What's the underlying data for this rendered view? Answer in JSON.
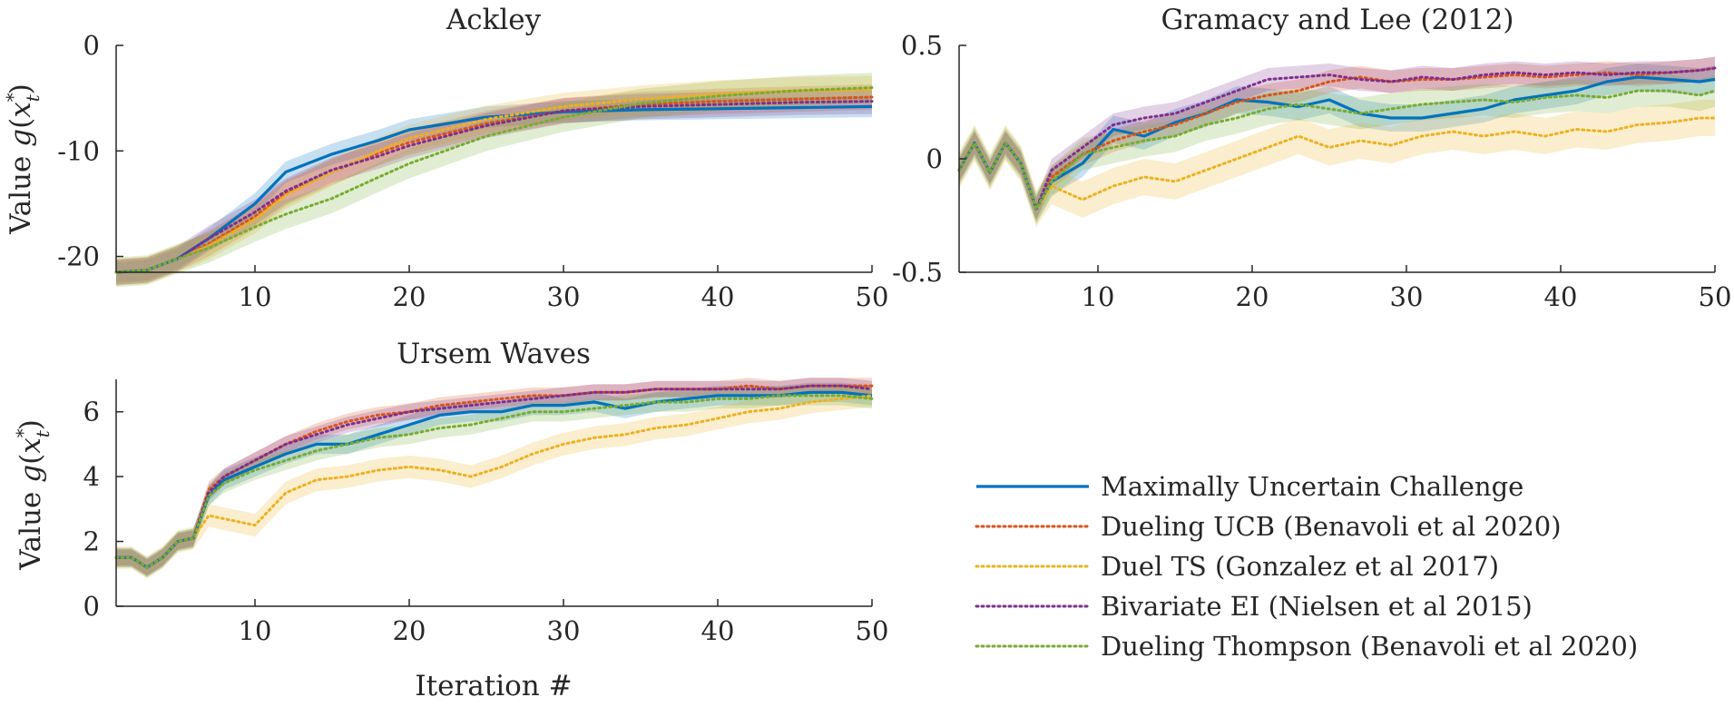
{
  "legend": {
    "entries": [
      {
        "name": "Maximally Uncertain Challenge",
        "color": "#0072BD",
        "style": "solid"
      },
      {
        "name": "Dueling UCB (Benavoli et al 2020)",
        "color": "#D95319",
        "style": "dotted"
      },
      {
        "name": "Duel TS (Gonzalez et al 2017)",
        "color": "#EDB120",
        "style": "dotted"
      },
      {
        "name": "Bivariate EI (Nielsen et al 2015)",
        "color": "#7E2F8E",
        "style": "dotted"
      },
      {
        "name": "Dueling Thompson (Benavoli et al 2020)",
        "color": "#77AC30",
        "style": "dotted"
      }
    ]
  },
  "chart_data": [
    {
      "id": "ackley",
      "type": "line",
      "title": "Ackley",
      "xlabel": "",
      "ylabel": "Value g(x*_t)",
      "xlim": [
        1,
        50
      ],
      "ylim": [
        -21.5,
        0
      ],
      "xticks": [
        10,
        20,
        30,
        40,
        50
      ],
      "yticks": [
        -20,
        -10,
        0
      ],
      "x": [
        1,
        3,
        5,
        7,
        10,
        12,
        15,
        18,
        20,
        25,
        30,
        35,
        40,
        45,
        50
      ],
      "series": [
        {
          "name": "Maximally Uncertain Challenge",
          "values": [
            -21.5,
            -21.3,
            -20.2,
            -18.3,
            -15.0,
            -12.0,
            -10.3,
            -9.0,
            -8.0,
            -6.8,
            -6.3,
            -6.1,
            -6.0,
            -5.9,
            -5.8
          ],
          "band": 1.0
        },
        {
          "name": "Dueling UCB (Benavoli et al 2020)",
          "values": [
            -21.5,
            -21.3,
            -20.2,
            -18.8,
            -16.2,
            -14.0,
            -12.0,
            -10.2,
            -9.2,
            -7.4,
            -6.2,
            -5.6,
            -5.3,
            -5.1,
            -4.9
          ],
          "band": 1.2
        },
        {
          "name": "Duel TS (Gonzalez et al 2017)",
          "values": [
            -21.5,
            -21.3,
            -20.2,
            -19.0,
            -16.5,
            -14.2,
            -12.0,
            -10.0,
            -8.8,
            -7.0,
            -5.8,
            -5.1,
            -4.6,
            -4.3,
            -4.2
          ],
          "band": 1.3
        },
        {
          "name": "Bivariate EI (Nielsen et al 2015)",
          "values": [
            -21.5,
            -21.3,
            -20.2,
            -18.3,
            -15.8,
            -13.8,
            -11.8,
            -10.5,
            -9.5,
            -7.6,
            -6.2,
            -5.8,
            -5.6,
            -5.4,
            -5.3
          ],
          "band": 1.2
        },
        {
          "name": "Dueling Thompson (Benavoli et al 2020)",
          "values": [
            -21.5,
            -21.3,
            -20.2,
            -19.2,
            -17.2,
            -16.0,
            -14.5,
            -12.5,
            -11.2,
            -8.6,
            -6.8,
            -5.5,
            -4.8,
            -4.3,
            -4.0
          ],
          "band": 1.4
        }
      ]
    },
    {
      "id": "gramacy",
      "type": "line",
      "title": "Gramacy and Lee (2012)",
      "xlabel": "",
      "ylabel": "",
      "xlim": [
        1,
        50
      ],
      "ylim": [
        -0.5,
        0.5
      ],
      "xticks": [
        10,
        20,
        30,
        40,
        50
      ],
      "yticks": [
        -0.5,
        0,
        0.5
      ],
      "x": [
        1,
        2,
        3,
        4,
        5,
        6,
        7,
        9,
        11,
        13,
        15,
        17,
        19,
        21,
        23,
        25,
        27,
        29,
        31,
        33,
        35,
        37,
        39,
        41,
        43,
        45,
        47,
        49,
        50
      ],
      "series": [
        {
          "name": "Maximally Uncertain Challenge",
          "values": [
            -0.05,
            0.07,
            -0.06,
            0.07,
            -0.02,
            -0.22,
            -0.1,
            -0.02,
            0.13,
            0.1,
            0.16,
            0.2,
            0.26,
            0.25,
            0.23,
            0.26,
            0.2,
            0.18,
            0.18,
            0.2,
            0.22,
            0.26,
            0.28,
            0.3,
            0.34,
            0.36,
            0.35,
            0.34,
            0.35
          ],
          "band": 0.06
        },
        {
          "name": "Dueling UCB (Benavoli et al 2020)",
          "values": [
            -0.05,
            0.07,
            -0.06,
            0.07,
            -0.02,
            -0.22,
            -0.08,
            0.02,
            0.08,
            0.12,
            0.15,
            0.2,
            0.25,
            0.28,
            0.3,
            0.34,
            0.36,
            0.34,
            0.35,
            0.35,
            0.36,
            0.37,
            0.36,
            0.37,
            0.38,
            0.37,
            0.38,
            0.39,
            0.4
          ],
          "band": 0.05
        },
        {
          "name": "Duel TS (Gonzalez et al 2017)",
          "values": [
            -0.05,
            0.07,
            -0.06,
            0.07,
            -0.02,
            -0.22,
            -0.12,
            -0.18,
            -0.12,
            -0.08,
            -0.1,
            -0.05,
            0.0,
            0.05,
            0.1,
            0.05,
            0.08,
            0.06,
            0.1,
            0.12,
            0.1,
            0.12,
            0.1,
            0.13,
            0.12,
            0.15,
            0.16,
            0.18,
            0.18
          ],
          "band": 0.08
        },
        {
          "name": "Bivariate EI (Nielsen et al 2015)",
          "values": [
            -0.05,
            0.07,
            -0.06,
            0.07,
            -0.02,
            -0.22,
            -0.05,
            0.05,
            0.15,
            0.18,
            0.2,
            0.25,
            0.3,
            0.35,
            0.36,
            0.37,
            0.35,
            0.34,
            0.36,
            0.35,
            0.37,
            0.38,
            0.37,
            0.38,
            0.37,
            0.38,
            0.38,
            0.39,
            0.4
          ],
          "band": 0.05
        },
        {
          "name": "Dueling Thompson (Benavoli et al 2020)",
          "values": [
            -0.05,
            0.07,
            -0.06,
            0.07,
            -0.02,
            -0.22,
            -0.1,
            0.02,
            0.05,
            0.08,
            0.1,
            0.15,
            0.18,
            0.22,
            0.24,
            0.22,
            0.2,
            0.22,
            0.24,
            0.25,
            0.26,
            0.25,
            0.27,
            0.28,
            0.27,
            0.3,
            0.3,
            0.28,
            0.3
          ],
          "band": 0.07
        }
      ]
    },
    {
      "id": "ursem",
      "type": "line",
      "title": "Ursem Waves",
      "xlabel": "Iteration #",
      "ylabel": "Value g(x*_t)",
      "xlim": [
        1,
        50
      ],
      "ylim": [
        0,
        7
      ],
      "xticks": [
        10,
        20,
        30,
        40,
        50
      ],
      "yticks": [
        0,
        2,
        4,
        6
      ],
      "x": [
        1,
        2,
        3,
        4,
        5,
        6,
        7,
        8,
        10,
        12,
        14,
        16,
        18,
        20,
        22,
        24,
        26,
        28,
        30,
        32,
        34,
        36,
        38,
        40,
        42,
        44,
        46,
        48,
        50
      ],
      "series": [
        {
          "name": "Maximally Uncertain Challenge",
          "values": [
            1.5,
            1.5,
            1.2,
            1.5,
            2.0,
            2.1,
            3.4,
            3.9,
            4.3,
            4.7,
            5.0,
            5.0,
            5.3,
            5.6,
            5.9,
            6.0,
            6.0,
            6.2,
            6.2,
            6.3,
            6.1,
            6.3,
            6.4,
            6.5,
            6.5,
            6.5,
            6.6,
            6.6,
            6.5
          ],
          "band": 0.3
        },
        {
          "name": "Dueling UCB (Benavoli et al 2020)",
          "values": [
            1.5,
            1.5,
            1.2,
            1.5,
            2.0,
            2.1,
            3.6,
            4.0,
            4.5,
            5.0,
            5.4,
            5.7,
            5.9,
            6.0,
            6.2,
            6.3,
            6.4,
            6.5,
            6.5,
            6.6,
            6.6,
            6.7,
            6.7,
            6.7,
            6.8,
            6.7,
            6.8,
            6.8,
            6.8
          ],
          "band": 0.25
        },
        {
          "name": "Duel TS (Gonzalez et al 2017)",
          "values": [
            1.5,
            1.5,
            1.2,
            1.5,
            2.0,
            2.1,
            2.8,
            2.7,
            2.5,
            3.5,
            3.9,
            4.0,
            4.2,
            4.3,
            4.2,
            4.0,
            4.3,
            4.7,
            5.0,
            5.2,
            5.3,
            5.5,
            5.6,
            5.8,
            6.0,
            6.1,
            6.3,
            6.4,
            6.5
          ],
          "band": 0.35
        },
        {
          "name": "Bivariate EI (Nielsen et al 2015)",
          "values": [
            1.5,
            1.5,
            1.2,
            1.5,
            2.0,
            2.1,
            3.5,
            4.0,
            4.5,
            5.0,
            5.3,
            5.6,
            5.8,
            6.0,
            6.1,
            6.2,
            6.3,
            6.4,
            6.5,
            6.6,
            6.6,
            6.7,
            6.7,
            6.7,
            6.7,
            6.7,
            6.8,
            6.8,
            6.7
          ],
          "band": 0.25
        },
        {
          "name": "Dueling Thompson (Benavoli et al 2020)",
          "values": [
            1.5,
            1.5,
            1.2,
            1.5,
            2.0,
            2.1,
            3.4,
            3.8,
            4.2,
            4.5,
            4.8,
            5.0,
            5.2,
            5.3,
            5.5,
            5.6,
            5.8,
            6.0,
            6.0,
            6.1,
            6.2,
            6.3,
            6.3,
            6.4,
            6.4,
            6.5,
            6.5,
            6.5,
            6.4
          ],
          "band": 0.3
        }
      ]
    }
  ]
}
